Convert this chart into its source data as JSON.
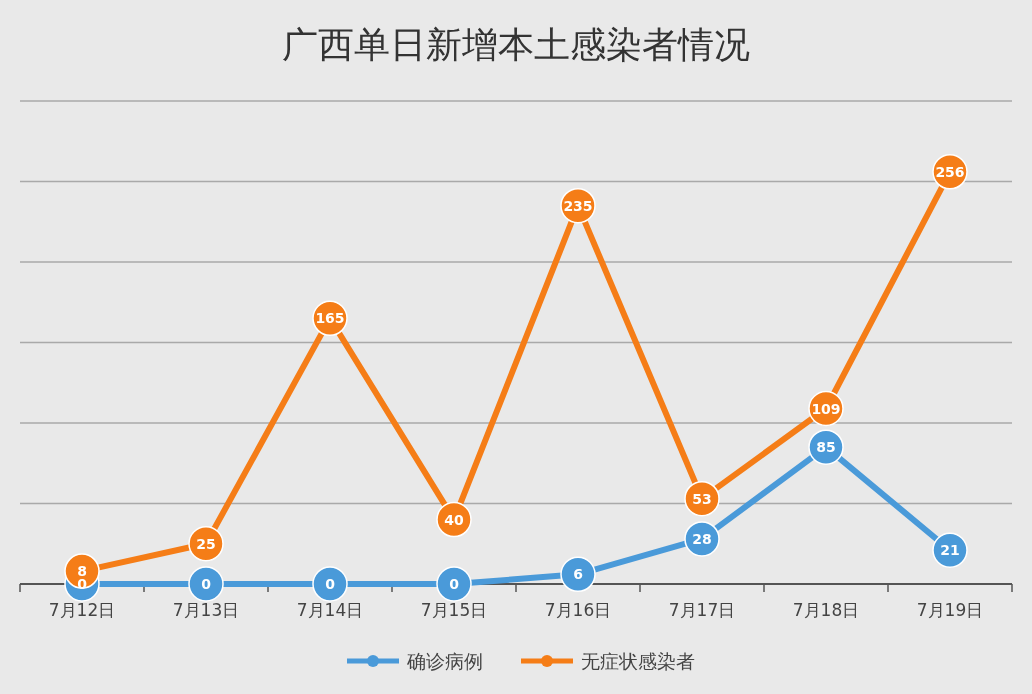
{
  "chart_data": {
    "type": "line",
    "title": "广西单日新增本土感染者情况",
    "categories": [
      "7月12日",
      "7月13日",
      "7月14日",
      "7月15日",
      "7月16日",
      "7月17日",
      "7月18日",
      "7月19日"
    ],
    "series": [
      {
        "name": "确诊病例",
        "color": "#4a9ad9",
        "values": [
          0,
          0,
          0,
          0,
          6,
          28,
          85,
          21
        ]
      },
      {
        "name": "无症状感染者",
        "color": "#f57d17",
        "values": [
          8,
          25,
          165,
          40,
          235,
          53,
          109,
          256
        ]
      }
    ],
    "ylim": [
      0,
      300
    ],
    "yticks": [
      {
        "value": 0,
        "label": null
      },
      {
        "value": 50,
        "label": null
      },
      {
        "value": 100,
        "label": null
      },
      {
        "value": 150,
        "label": null
      },
      {
        "value": 200,
        "label": null
      },
      {
        "value": 250,
        "label": null
      },
      {
        "value": 300,
        "label": null
      }
    ],
    "grid": "y",
    "tick_labels": "x",
    "legend": "bottom",
    "marker": "circle",
    "line_style": "solid",
    "data_labels": true
  }
}
